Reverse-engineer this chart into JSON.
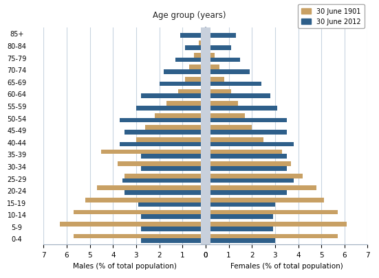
{
  "age_groups": [
    "0-4",
    "5-9",
    "10-14",
    "15-19",
    "20-24",
    "25-29",
    "30-34",
    "35-39",
    "40-44",
    "45-49",
    "50-54",
    "55-59",
    "60-64",
    "65-69",
    "70-74",
    "75-79",
    "80-84",
    "85+"
  ],
  "males_1901": [
    5.7,
    6.3,
    5.7,
    5.2,
    4.7,
    3.5,
    3.8,
    4.5,
    3.0,
    2.6,
    2.2,
    1.7,
    1.2,
    0.9,
    0.7,
    0.5,
    0.3,
    0.2
  ],
  "males_2012": [
    2.8,
    2.8,
    2.8,
    2.9,
    3.5,
    3.6,
    2.8,
    2.8,
    3.7,
    3.5,
    3.7,
    3.0,
    2.8,
    2.0,
    1.8,
    1.3,
    0.9,
    1.1
  ],
  "females_1901": [
    5.7,
    6.1,
    5.7,
    5.1,
    4.8,
    4.2,
    3.7,
    3.3,
    2.5,
    2.0,
    1.7,
    1.4,
    1.1,
    0.8,
    0.6,
    0.4,
    0.2,
    0.1
  ],
  "females_2012": [
    3.0,
    2.9,
    2.9,
    3.0,
    3.5,
    3.8,
    3.5,
    3.5,
    3.8,
    3.5,
    3.5,
    3.1,
    2.8,
    2.4,
    1.9,
    1.5,
    1.1,
    1.3
  ],
  "color_1901": "#c8a064",
  "color_2012": "#2e5f8a",
  "title": "Age group (years)",
  "xlabel_left": "Males (% of total population)",
  "xlabel_right": "Females (% of total population)",
  "legend_labels": [
    "30 June 1901",
    "30 June 2012"
  ],
  "xlim": 7,
  "background_color": "#ffffff",
  "grid_color": "#c8d4e0"
}
